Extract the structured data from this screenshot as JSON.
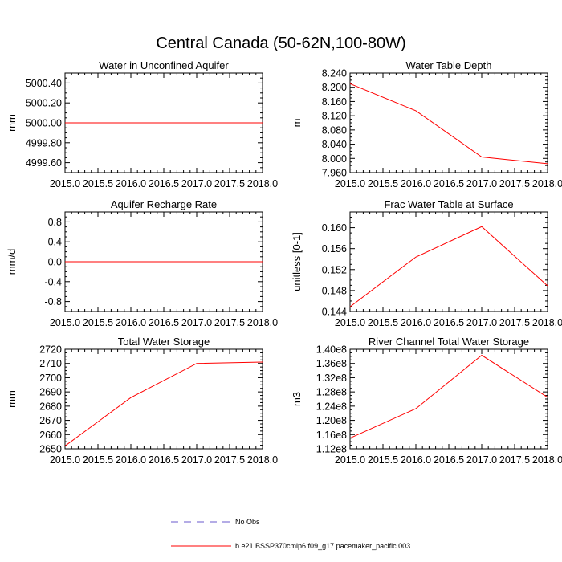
{
  "figure": {
    "title": "Central Canada (50-62N,100-80W)"
  },
  "legend": [
    {
      "label": "No Obs",
      "color": "#6a5acd",
      "style": "dashed"
    },
    {
      "label": "b.e21.BSSP370cmip6.f09_g17.pacemaker_pacific.003",
      "color": "#ff0000",
      "style": "solid"
    }
  ],
  "chart_data": [
    {
      "type": "line",
      "title": "Water in Unconfined Aquifer",
      "xlabel": "",
      "ylabel": "mm",
      "xlim": [
        2015.0,
        2018.0
      ],
      "ylim": [
        4999.5,
        5000.5
      ],
      "x_ticks": [
        "2015.0",
        "2015.5",
        "2016.0",
        "2016.5",
        "2017.0",
        "2017.5",
        "2018.0"
      ],
      "y_ticks": [
        "4999.60",
        "4999.80",
        "5000.00",
        "5000.20",
        "5000.40"
      ],
      "series": [
        {
          "name": "b.e21.BSSP370cmip6.f09_g17.pacemaker_pacific.003",
          "color": "#ff0000",
          "x": [
            2015.0,
            2016.0,
            2017.0,
            2018.0
          ],
          "values": [
            5000.0,
            5000.0,
            5000.0,
            5000.0
          ]
        }
      ]
    },
    {
      "type": "line",
      "title": "Water Table Depth",
      "xlabel": "",
      "ylabel": "m",
      "xlim": [
        2015.0,
        2018.0
      ],
      "ylim": [
        7.96,
        8.24
      ],
      "x_ticks": [
        "2015.0",
        "2015.5",
        "2016.0",
        "2016.5",
        "2017.0",
        "2017.5",
        "2018.0"
      ],
      "y_ticks": [
        "7.960",
        "8.000",
        "8.040",
        "8.080",
        "8.120",
        "8.160",
        "8.200",
        "8.240"
      ],
      "series": [
        {
          "name": "b.e21.BSSP370cmip6.f09_g17.pacemaker_pacific.003",
          "color": "#ff0000",
          "x": [
            2015.0,
            2016.0,
            2017.0,
            2018.0
          ],
          "values": [
            8.21,
            8.134,
            8.004,
            7.985
          ]
        }
      ]
    },
    {
      "type": "line",
      "title": "Aquifer Recharge Rate",
      "xlabel": "",
      "ylabel": "mm/d",
      "xlim": [
        2015.0,
        2018.0
      ],
      "ylim": [
        -1.0,
        1.0
      ],
      "x_ticks": [
        "2015.0",
        "2015.5",
        "2016.0",
        "2016.5",
        "2017.0",
        "2017.5",
        "2018.0"
      ],
      "y_ticks": [
        "-0.8",
        "-0.4",
        "0.0",
        "0.4",
        "0.8"
      ],
      "series": [
        {
          "name": "b.e21.BSSP370cmip6.f09_g17.pacemaker_pacific.003",
          "color": "#ff0000",
          "x": [
            2015.0,
            2016.0,
            2017.0,
            2018.0
          ],
          "values": [
            0.0,
            0.0,
            0.0,
            0.0
          ]
        }
      ]
    },
    {
      "type": "line",
      "title": "Frac Water Table at Surface",
      "xlabel": "",
      "ylabel": "unitless [0-1]",
      "xlim": [
        2015.0,
        2018.0
      ],
      "ylim": [
        0.144,
        0.163
      ],
      "x_ticks": [
        "2015.0",
        "2015.5",
        "2016.0",
        "2016.5",
        "2017.0",
        "2017.5",
        "2018.0"
      ],
      "y_ticks": [
        "0.144",
        "0.148",
        "0.152",
        "0.156",
        "0.160"
      ],
      "series": [
        {
          "name": "b.e21.BSSP370cmip6.f09_g17.pacemaker_pacific.003",
          "color": "#ff0000",
          "x": [
            2015.0,
            2016.0,
            2017.0,
            2018.0
          ],
          "values": [
            0.1449,
            0.1544,
            0.1602,
            0.1489
          ]
        }
      ]
    },
    {
      "type": "line",
      "title": "Total Water Storage",
      "xlabel": "",
      "ylabel": "mm",
      "xlim": [
        2015.0,
        2018.0
      ],
      "ylim": [
        2650,
        2720
      ],
      "x_ticks": [
        "2015.0",
        "2015.5",
        "2016.0",
        "2016.5",
        "2017.0",
        "2017.5",
        "2018.0"
      ],
      "y_ticks": [
        "2650",
        "2660",
        "2670",
        "2680",
        "2690",
        "2700",
        "2710",
        "2720"
      ],
      "series": [
        {
          "name": "b.e21.BSSP370cmip6.f09_g17.pacemaker_pacific.003",
          "color": "#ff0000",
          "x": [
            2015.0,
            2016.0,
            2017.0,
            2018.0
          ],
          "values": [
            2652,
            2686,
            2710,
            2711
          ]
        }
      ]
    },
    {
      "type": "line",
      "title": "River Channel Total Water Storage",
      "xlabel": "",
      "ylabel": "m3",
      "xlim": [
        2015.0,
        2018.0
      ],
      "ylim": [
        112000000.0,
        140000000.0
      ],
      "x_ticks": [
        "2015.0",
        "2015.5",
        "2016.0",
        "2016.5",
        "2017.0",
        "2017.5",
        "2018.0"
      ],
      "y_ticks": [
        "1.12e8",
        "1.16e8",
        "1.20e8",
        "1.24e8",
        "1.28e8",
        "1.32e8",
        "1.36e8",
        "1.40e8"
      ],
      "series": [
        {
          "name": "b.e21.BSSP370cmip6.f09_g17.pacemaker_pacific.003",
          "color": "#ff0000",
          "x": [
            2015.0,
            2016.0,
            2017.0,
            2018.0
          ],
          "values": [
            115000000.0,
            123300000.0,
            138300000.0,
            126500000.0
          ]
        }
      ]
    }
  ]
}
